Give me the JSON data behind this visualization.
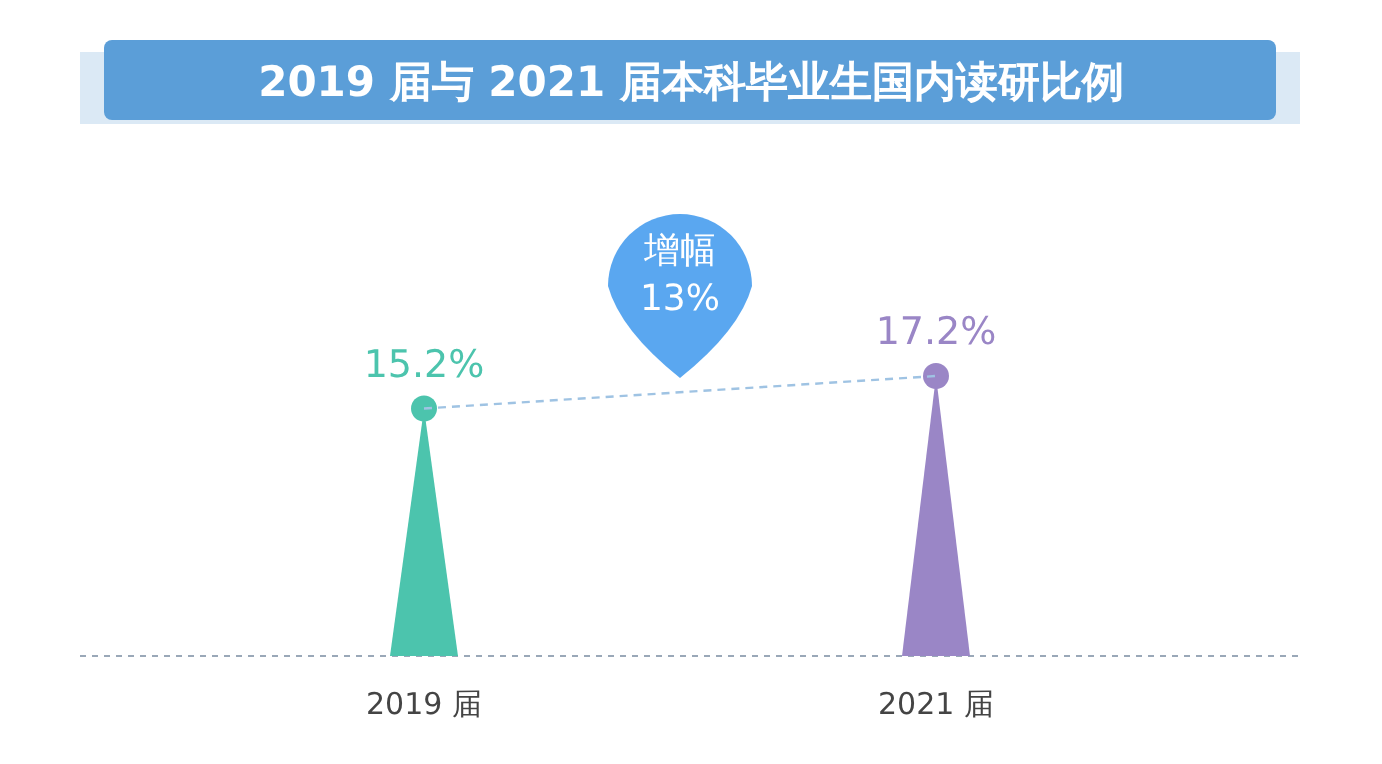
{
  "chart_data": {
    "type": "lollipop",
    "title": "2019 届与 2021 届本科毕业生国内读研比例",
    "categories": [
      "2019 届",
      "2021 届"
    ],
    "series": [
      {
        "values": [
          15.2,
          17.2
        ],
        "colors": [
          "#4cc4ad",
          "#9a86c6"
        ],
        "value_labels": [
          "15.2%",
          "17.2%"
        ]
      },
      {
        "type": "line",
        "values": [
          15.2,
          17.2
        ],
        "color": "#9fc3e3",
        "line_style": "dashed",
        "marker": "none"
      }
    ],
    "annotations": [
      "增幅\n13%"
    ]
  }
}
